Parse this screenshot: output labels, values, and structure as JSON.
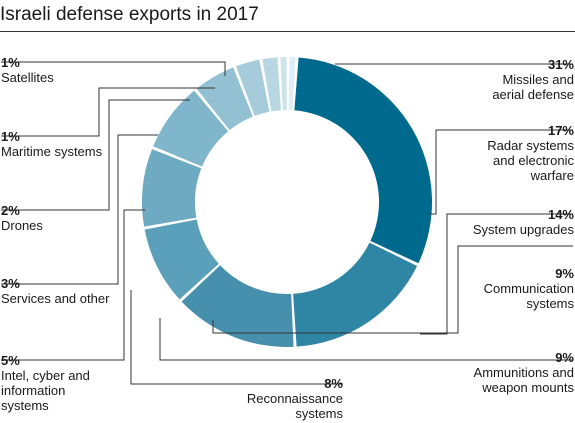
{
  "title": "Israeli defense exports in 2017",
  "chart_data": {
    "type": "pie",
    "title": "Israeli defense exports in 2017",
    "slices": [
      {
        "name": "Missiles and aerial defense",
        "value": 31,
        "pct_label": "31%",
        "label_lines": [
          "Missiles and",
          "aerial defense"
        ],
        "color": "#006a8e"
      },
      {
        "name": "Radar systems and electronic warfare",
        "value": 17,
        "pct_label": "17%",
        "label_lines": [
          "Radar systems",
          "and electronic",
          "warfare"
        ],
        "color": "#2e86a4"
      },
      {
        "name": "System upgrades",
        "value": 14,
        "pct_label": "14%",
        "label_lines": [
          "System upgrades"
        ],
        "color": "#4690ad"
      },
      {
        "name": "Communication systems",
        "value": 9,
        "pct_label": "9%",
        "label_lines": [
          "Communication",
          "systems"
        ],
        "color": "#5ba0ba"
      },
      {
        "name": "Ammunitions and weapon mounts",
        "value": 9,
        "pct_label": "9%",
        "label_lines": [
          "Ammunitions and",
          "weapon mounts"
        ],
        "color": "#6eabc3"
      },
      {
        "name": "Reconnaissance systems",
        "value": 8,
        "pct_label": "8%",
        "label_lines": [
          "Reconnaissance",
          "systems"
        ],
        "color": "#80b6cb"
      },
      {
        "name": "Intel, cyber and information systems",
        "value": 5,
        "pct_label": "5%",
        "label_lines": [
          "Intel, cyber and",
          "information",
          "systems"
        ],
        "color": "#93c1d3"
      },
      {
        "name": "Services and other",
        "value": 3,
        "pct_label": "3%",
        "label_lines": [
          "Services and other"
        ],
        "color": "#a6ccdb"
      },
      {
        "name": "Drones",
        "value": 2,
        "pct_label": "2%",
        "label_lines": [
          "Drones"
        ],
        "color": "#b9d7e3"
      },
      {
        "name": "Maritime systems",
        "value": 1,
        "pct_label": "1%",
        "label_lines": [
          "Maritime systems"
        ],
        "color": "#cce3ec"
      },
      {
        "name": "Satellites",
        "value": 1,
        "pct_label": "1%",
        "label_lines": [
          "Satellites"
        ],
        "color": "#deeef4"
      }
    ],
    "legend": "none"
  }
}
